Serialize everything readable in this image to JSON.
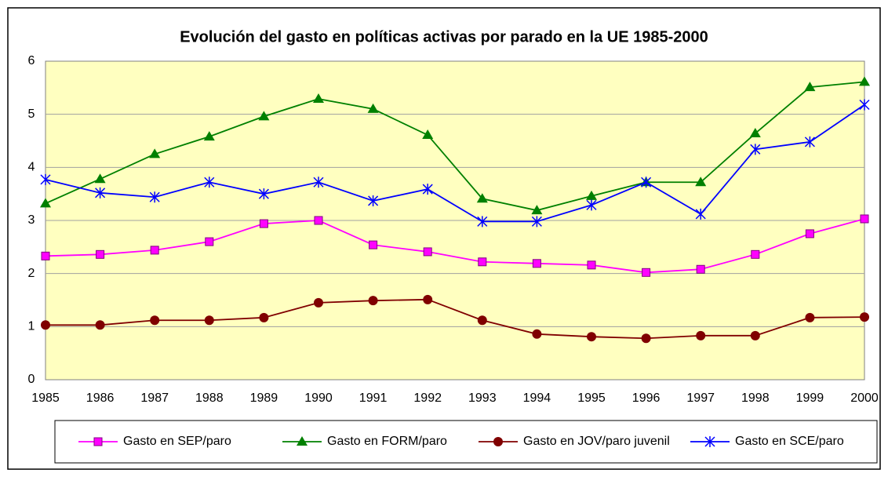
{
  "chart_data": {
    "type": "line",
    "title": "Evolución del gasto en políticas activas por parado en la UE 1985-2000",
    "categories": [
      "1985",
      "1986",
      "1987",
      "1988",
      "1989",
      "1990",
      "1991",
      "1992",
      "1993",
      "1994",
      "1995",
      "1996",
      "1997",
      "1998",
      "1999",
      "2000"
    ],
    "series": [
      {
        "name": "Gasto en SEP/paro",
        "color": "#ff00ff",
        "marker": "square",
        "values": [
          2.33,
          2.36,
          2.44,
          2.6,
          2.94,
          3.0,
          2.54,
          2.41,
          2.22,
          2.19,
          2.16,
          2.02,
          2.08,
          2.36,
          2.75,
          3.03
        ]
      },
      {
        "name": "Gasto en FORM/paro",
        "color": "#008000",
        "marker": "triangle",
        "values": [
          3.32,
          3.78,
          4.25,
          4.58,
          4.96,
          5.29,
          5.1,
          4.61,
          3.41,
          3.19,
          3.46,
          3.72,
          3.72,
          4.64,
          5.51,
          5.61
        ]
      },
      {
        "name": "Gasto en JOV/paro juvenil",
        "color": "#800000",
        "marker": "circle",
        "values": [
          1.03,
          1.03,
          1.12,
          1.12,
          1.17,
          1.45,
          1.49,
          1.51,
          1.12,
          0.86,
          0.81,
          0.78,
          0.83,
          0.83,
          1.17,
          1.18
        ]
      },
      {
        "name": "Gasto en SCE/paro",
        "color": "#0000ff",
        "marker": "star",
        "values": [
          3.77,
          3.52,
          3.44,
          3.72,
          3.5,
          3.72,
          3.37,
          3.59,
          2.98,
          2.98,
          3.29,
          3.72,
          3.12,
          4.34,
          4.48,
          5.18
        ]
      }
    ],
    "ylim": [
      0,
      6
    ],
    "yticks": [
      0,
      1,
      2,
      3,
      4,
      5,
      6
    ],
    "grid": true,
    "legend": "bottom"
  }
}
